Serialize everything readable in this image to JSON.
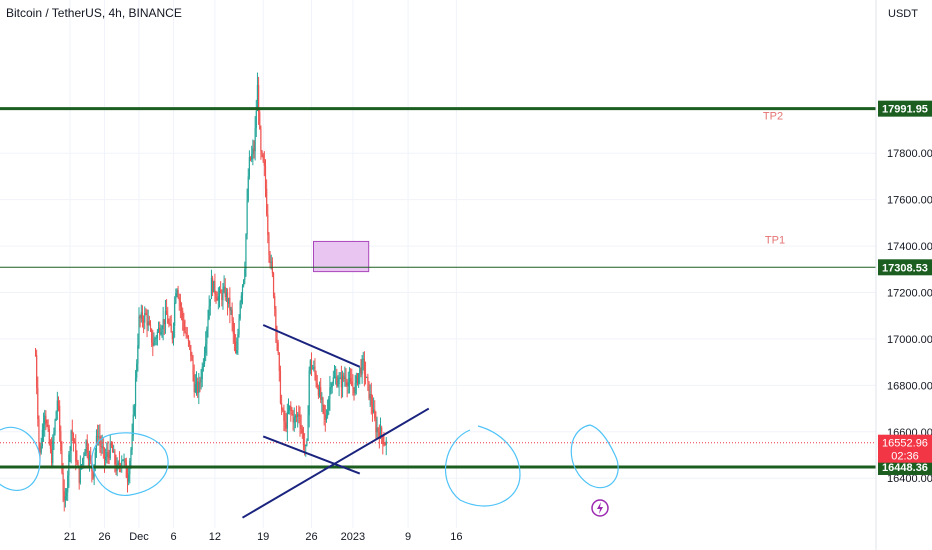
{
  "header": {
    "symbol_title": "Bitcoin / TetherUS, 4h, BINANCE",
    "currency": "USDT"
  },
  "colors": {
    "up": "#26a69a",
    "down": "#ef5350",
    "level_line": "#1b5e20",
    "trend_line": "#1a237e",
    "ellipse": "#4fc3f7",
    "zone_fill": "#e8c6f1",
    "zone_border": "#ab47bc",
    "tp_label": "#e57373",
    "current_price": "#f23645",
    "lightning": "#9c27b0"
  },
  "chart_data": {
    "type": "candlestick",
    "symbol": "Bitcoin / TetherUS",
    "interval": "4h",
    "exchange": "BINANCE",
    "y_unit": "USDT",
    "ylim": [
      16220,
      18460
    ],
    "yticks": [
      "17800.00",
      "17600.00",
      "17400.00",
      "17200.00",
      "17000.00",
      "16800.00",
      "16600.00",
      "16400.00"
    ],
    "xticks": [
      "21",
      "26",
      "Dec",
      "6",
      "12",
      "19",
      "26",
      "2023",
      "9",
      "16"
    ],
    "levels": [
      {
        "label": "TP2",
        "value": 17991.95,
        "badge": "17991.95"
      },
      {
        "label": "TP1",
        "value": 17308.53,
        "badge": "17308.53"
      },
      {
        "label": "",
        "value": 16448.36,
        "badge": "16448.36"
      }
    ],
    "last_price": {
      "value": 16552.96,
      "badge": "16552.96",
      "countdown": "02:36"
    },
    "target_zone": {
      "from_date": "Dec 26",
      "to_date": "Jan 3",
      "low": 17290,
      "high": 17420
    },
    "trend_lines": [
      {
        "name": "upper",
        "from": [
          "Dec 19",
          17060
        ],
        "to": [
          "Jan 2",
          16880
        ]
      },
      {
        "name": "lower",
        "from": [
          "Dec 19",
          16580
        ],
        "to": [
          "Jan 2",
          16420
        ]
      },
      {
        "name": "rising",
        "from": [
          "Dec 16",
          16230
        ],
        "to": [
          "Jan 12",
          16700
        ]
      }
    ],
    "path": [
      [
        16.0,
        16930
      ],
      [
        16.6,
        16480
      ],
      [
        17.3,
        16700
      ],
      [
        18.3,
        16480
      ],
      [
        19.2,
        16750
      ],
      [
        20.2,
        16260
      ],
      [
        21.2,
        16620
      ],
      [
        22.3,
        16400
      ],
      [
        23.3,
        16560
      ],
      [
        24.3,
        16420
      ],
      [
        25.0,
        16600
      ],
      [
        26.0,
        16480
      ],
      [
        27.0,
        16530
      ],
      [
        27.8,
        16430
      ],
      [
        28.6,
        16500
      ],
      [
        29.3,
        16400
      ],
      [
        30.0,
        16560
      ],
      [
        31.0,
        17080
      ],
      [
        32.0,
        17100
      ],
      [
        33.0,
        16980
      ],
      [
        34.0,
        17050
      ],
      [
        35.0,
        17100
      ],
      [
        35.8,
        17000
      ],
      [
        36.4,
        17250
      ],
      [
        37.5,
        17050
      ],
      [
        38.5,
        16940
      ],
      [
        39.0,
        16800
      ],
      [
        39.6,
        16780
      ],
      [
        40.2,
        16880
      ],
      [
        41.5,
        17240
      ],
      [
        42.5,
        17180
      ],
      [
        43.5,
        17200
      ],
      [
        44.3,
        17120
      ],
      [
        45.1,
        16900
      ],
      [
        45.6,
        17160
      ],
      [
        46.3,
        17300
      ],
      [
        46.9,
        17750
      ],
      [
        47.7,
        17820
      ],
      [
        48.2,
        18100
      ],
      [
        48.6,
        17800
      ],
      [
        49.2,
        17720
      ],
      [
        49.8,
        17400
      ],
      [
        50.4,
        17250
      ],
      [
        51.1,
        16950
      ],
      [
        51.6,
        16700
      ],
      [
        52.2,
        16620
      ],
      [
        52.8,
        16700
      ],
      [
        53.5,
        16650
      ],
      [
        54.2,
        16680
      ],
      [
        54.7,
        16580
      ],
      [
        55.3,
        16500
      ],
      [
        55.7,
        16900
      ],
      [
        56.4,
        16860
      ],
      [
        57.2,
        16760
      ],
      [
        58.0,
        16640
      ],
      [
        58.8,
        16820
      ],
      [
        59.5,
        16830
      ],
      [
        60.2,
        16810
      ],
      [
        60.9,
        16840
      ],
      [
        61.6,
        16800
      ],
      [
        62.3,
        16790
      ],
      [
        62.9,
        16860
      ],
      [
        63.5,
        16890
      ],
      [
        64.1,
        16800
      ],
      [
        64.7,
        16720
      ],
      [
        65.3,
        16620
      ],
      [
        65.9,
        16600
      ],
      [
        66.5,
        16560
      ],
      [
        66.9,
        16550
      ]
    ]
  },
  "annotations": {
    "tp1_label": "TP1",
    "tp2_label": "TP2"
  }
}
